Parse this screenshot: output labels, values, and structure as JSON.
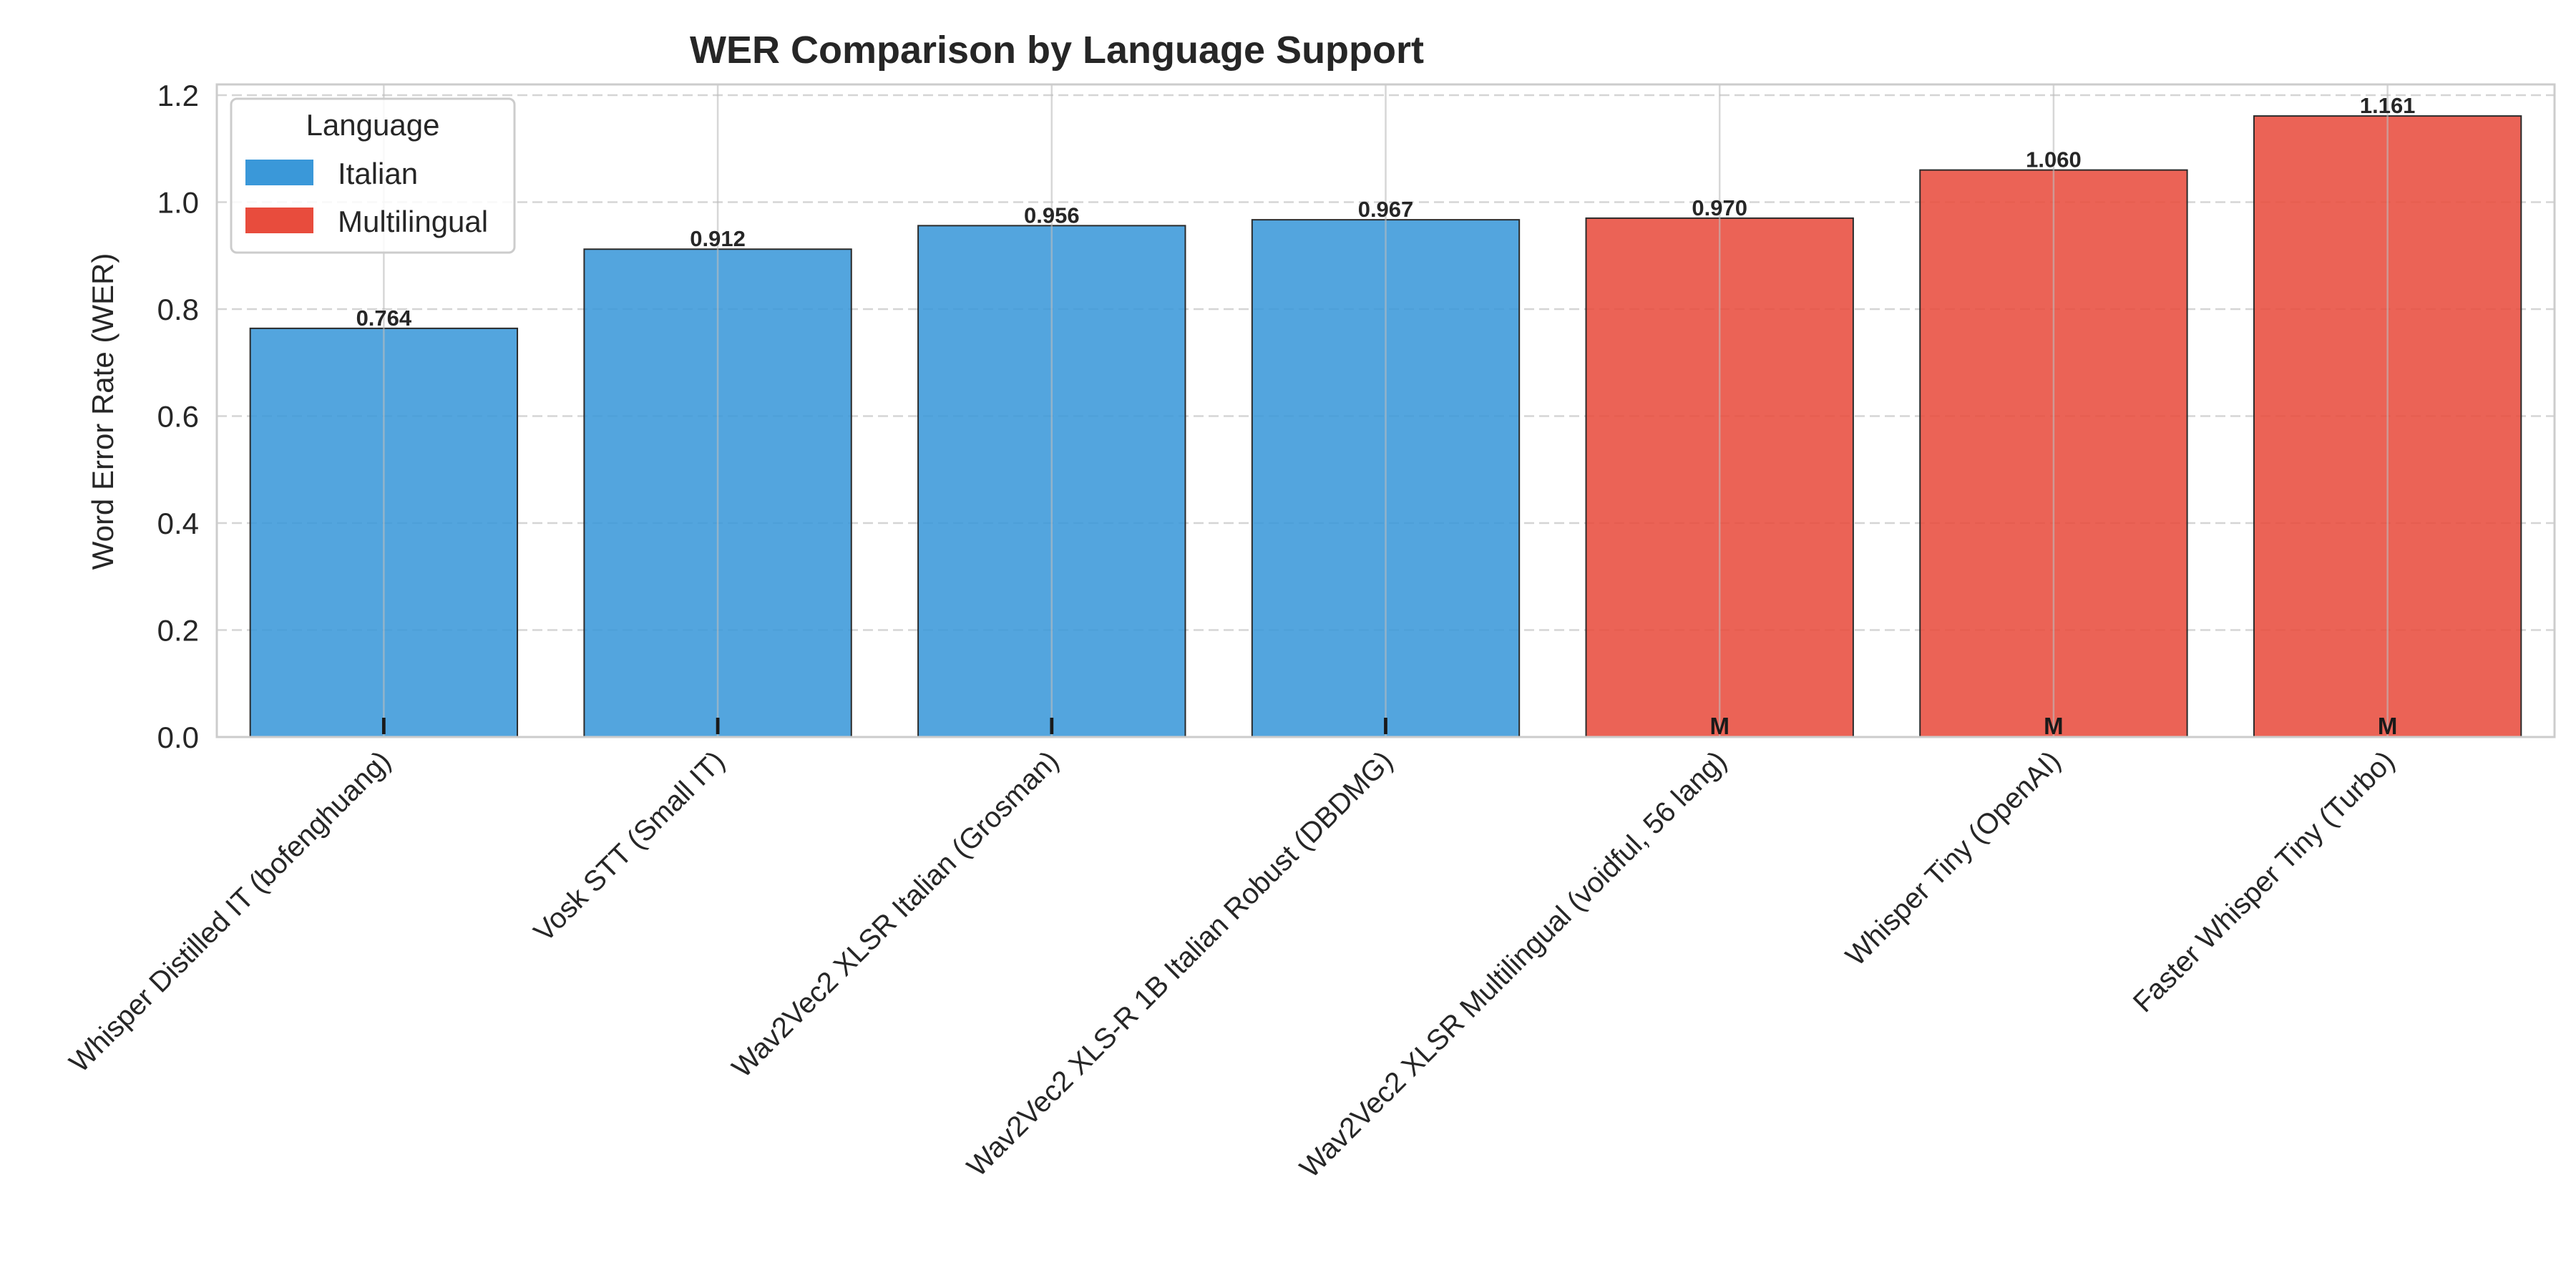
{
  "chart_data": {
    "type": "bar",
    "title": "WER Comparison by Language Support",
    "xlabel": "",
    "ylabel": "Word Error Rate (WER)",
    "ylim": [
      0,
      1.22
    ],
    "yticks": [
      0.0,
      0.2,
      0.4,
      0.6,
      0.8,
      1.0,
      1.2
    ],
    "ytick_labels": [
      "0.0",
      "0.2",
      "0.4",
      "0.6",
      "0.8",
      "1.0",
      "1.2"
    ],
    "grid": true,
    "legend": {
      "title": "Language",
      "placement": "top-left",
      "entries": [
        {
          "name": "Italian",
          "color": "#3a98d9"
        },
        {
          "name": "Multilingual",
          "color": "#e84c3d"
        }
      ]
    },
    "categories": [
      "Whisper Distilled IT (bofenghuang)",
      "Vosk STT (Small IT)",
      "Wav2Vec2 XLSR Italian (Grosman)",
      "Wav2Vec2 XLS-R 1B Italian Robust (DBDMG)",
      "Wav2Vec2 XLSR Multilingual (voidful, 56 lang)",
      "Whisper Tiny (OpenAI)",
      "Faster Whisper Tiny (Turbo)"
    ],
    "values": [
      0.764,
      0.912,
      0.956,
      0.967,
      0.97,
      1.06,
      1.161
    ],
    "value_labels": [
      "0.764",
      "0.912",
      "0.956",
      "0.967",
      "0.970",
      "1.060",
      "1.161"
    ],
    "language": [
      "Italian",
      "Italian",
      "Italian",
      "Italian",
      "Multilingual",
      "Multilingual",
      "Multilingual"
    ],
    "bar_codes": [
      "I",
      "I",
      "I",
      "I",
      "M",
      "M",
      "M"
    ]
  }
}
